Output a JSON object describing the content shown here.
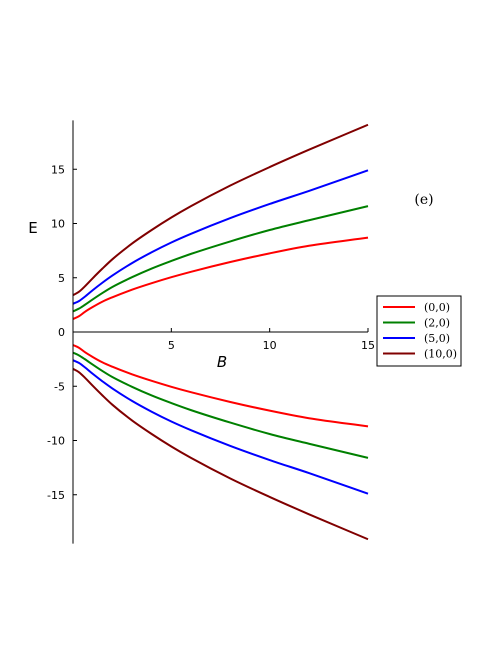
{
  "chart_data": {
    "type": "line",
    "title": "",
    "xlabel": "B",
    "ylabel": "E",
    "panel_label": "(e)",
    "xlim": [
      0,
      15
    ],
    "ylim": [
      -19.5,
      19.5
    ],
    "x_ticks": [
      5,
      10,
      15
    ],
    "y_ticks": [
      -15,
      -10,
      -5,
      0,
      5,
      10,
      15
    ],
    "x_tick_labels": [
      "5",
      "10",
      "15"
    ],
    "y_tick_labels": [
      "-15",
      "-10",
      "-5",
      "0",
      "5",
      "10",
      "15"
    ],
    "grid": false,
    "legend_position": "right",
    "x": [
      0,
      0.3,
      0.6,
      1,
      1.5,
      2,
      3,
      4,
      5,
      6,
      8,
      10,
      12,
      15
    ],
    "series": [
      {
        "name": "(0,0)",
        "color": "#ff0000",
        "upper": [
          1.2,
          1.45,
          1.85,
          2.3,
          2.8,
          3.2,
          3.9,
          4.5,
          5.05,
          5.55,
          6.45,
          7.25,
          7.95,
          8.7
        ],
        "lower": [
          -1.2,
          -1.45,
          -1.85,
          -2.3,
          -2.8,
          -3.2,
          -3.9,
          -4.5,
          -5.05,
          -5.55,
          -6.45,
          -7.25,
          -7.95,
          -8.7
        ]
      },
      {
        "name": "(2,0)",
        "color": "#008000",
        "upper": [
          1.9,
          2.15,
          2.5,
          3.0,
          3.6,
          4.15,
          5.05,
          5.85,
          6.55,
          7.2,
          8.35,
          9.4,
          10.3,
          11.6
        ],
        "lower": [
          -1.9,
          -2.15,
          -2.5,
          -3.0,
          -3.6,
          -4.15,
          -5.05,
          -5.85,
          -6.55,
          -7.2,
          -8.35,
          -9.4,
          -10.3,
          -11.6
        ]
      },
      {
        "name": "(5,0)",
        "color": "#0000ff",
        "upper": [
          2.6,
          2.85,
          3.25,
          3.85,
          4.55,
          5.2,
          6.35,
          7.35,
          8.25,
          9.05,
          10.5,
          11.8,
          13.0,
          14.9
        ],
        "lower": [
          -2.6,
          -2.85,
          -3.25,
          -3.85,
          -4.55,
          -5.2,
          -6.35,
          -7.35,
          -8.25,
          -9.05,
          -10.5,
          -11.8,
          -13.0,
          -14.9
        ]
      },
      {
        "name": "(10,0)",
        "color": "#800000",
        "upper": [
          3.4,
          3.7,
          4.2,
          4.95,
          5.85,
          6.7,
          8.15,
          9.4,
          10.55,
          11.6,
          13.5,
          15.2,
          16.8,
          19.1
        ],
        "lower": [
          -3.4,
          -3.7,
          -4.2,
          -4.95,
          -5.85,
          -6.7,
          -8.15,
          -9.4,
          -10.55,
          -11.6,
          -13.5,
          -15.2,
          -16.8,
          -19.1
        ]
      }
    ]
  }
}
